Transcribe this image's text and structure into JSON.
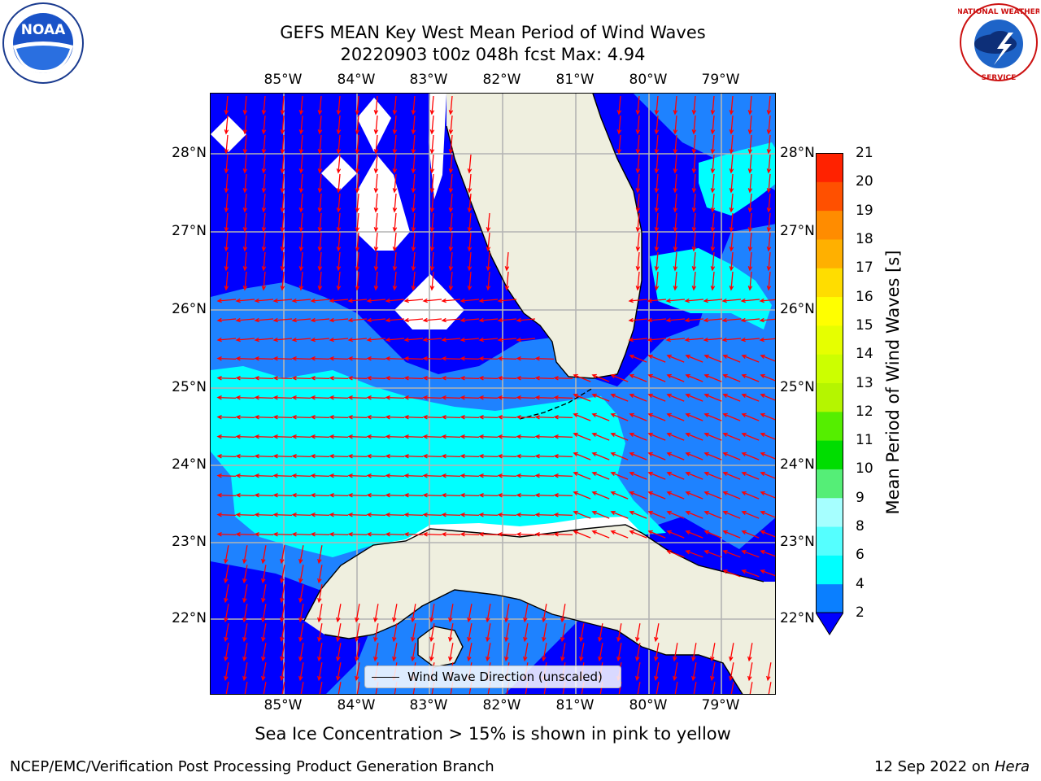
{
  "title": {
    "line1": "GEFS MEAN Key West Mean Period of Wind Waves",
    "line2": "20220903 t00z 048h fcst   Max: 4.94"
  },
  "map": {
    "lon_ticks": [
      "85°W",
      "84°W",
      "83°W",
      "82°W",
      "81°W",
      "80°W",
      "79°W"
    ],
    "lat_ticks": [
      "28°N",
      "27°N",
      "26°N",
      "25°N",
      "24°N",
      "23°N",
      "22°N"
    ],
    "legend_label": "Wind Wave Direction (unscaled)",
    "colors": {
      "land": "#efefdf",
      "period_lt2": "#0000ff",
      "period_2_4": "#1e82ff",
      "period_4_6": "#00ffff",
      "arrow": "#ff0000",
      "missing": "#ffffff"
    }
  },
  "colorbar": {
    "label": "Mean Period of Wind Waves [s]",
    "ticks": [
      "2",
      "4",
      "6",
      "8",
      "9",
      "10",
      "11",
      "12",
      "13",
      "14",
      "15",
      "16",
      "17",
      "18",
      "19",
      "20",
      "21"
    ],
    "colors": [
      "#0a7fff",
      "#00ffff",
      "#55ffff",
      "#a6ffff",
      "#55ee77",
      "#00dd00",
      "#55ee00",
      "#b5f500",
      "#ccff00",
      "#e6ff00",
      "#ffff00",
      "#ffdd00",
      "#ffb000",
      "#ff8c00",
      "#ff5000",
      "#ff2200"
    ]
  },
  "footer": {
    "sea_ice_note": "Sea Ice Concentration > 15% is shown in pink to yellow",
    "credit": "NCEP/EMC/Verification Post Processing Product Generation Branch",
    "date_prefix": "12 Sep 2022 on ",
    "machine": "Hera"
  },
  "logos": {
    "left": "noaa-logo",
    "right": "nws-logo"
  }
}
